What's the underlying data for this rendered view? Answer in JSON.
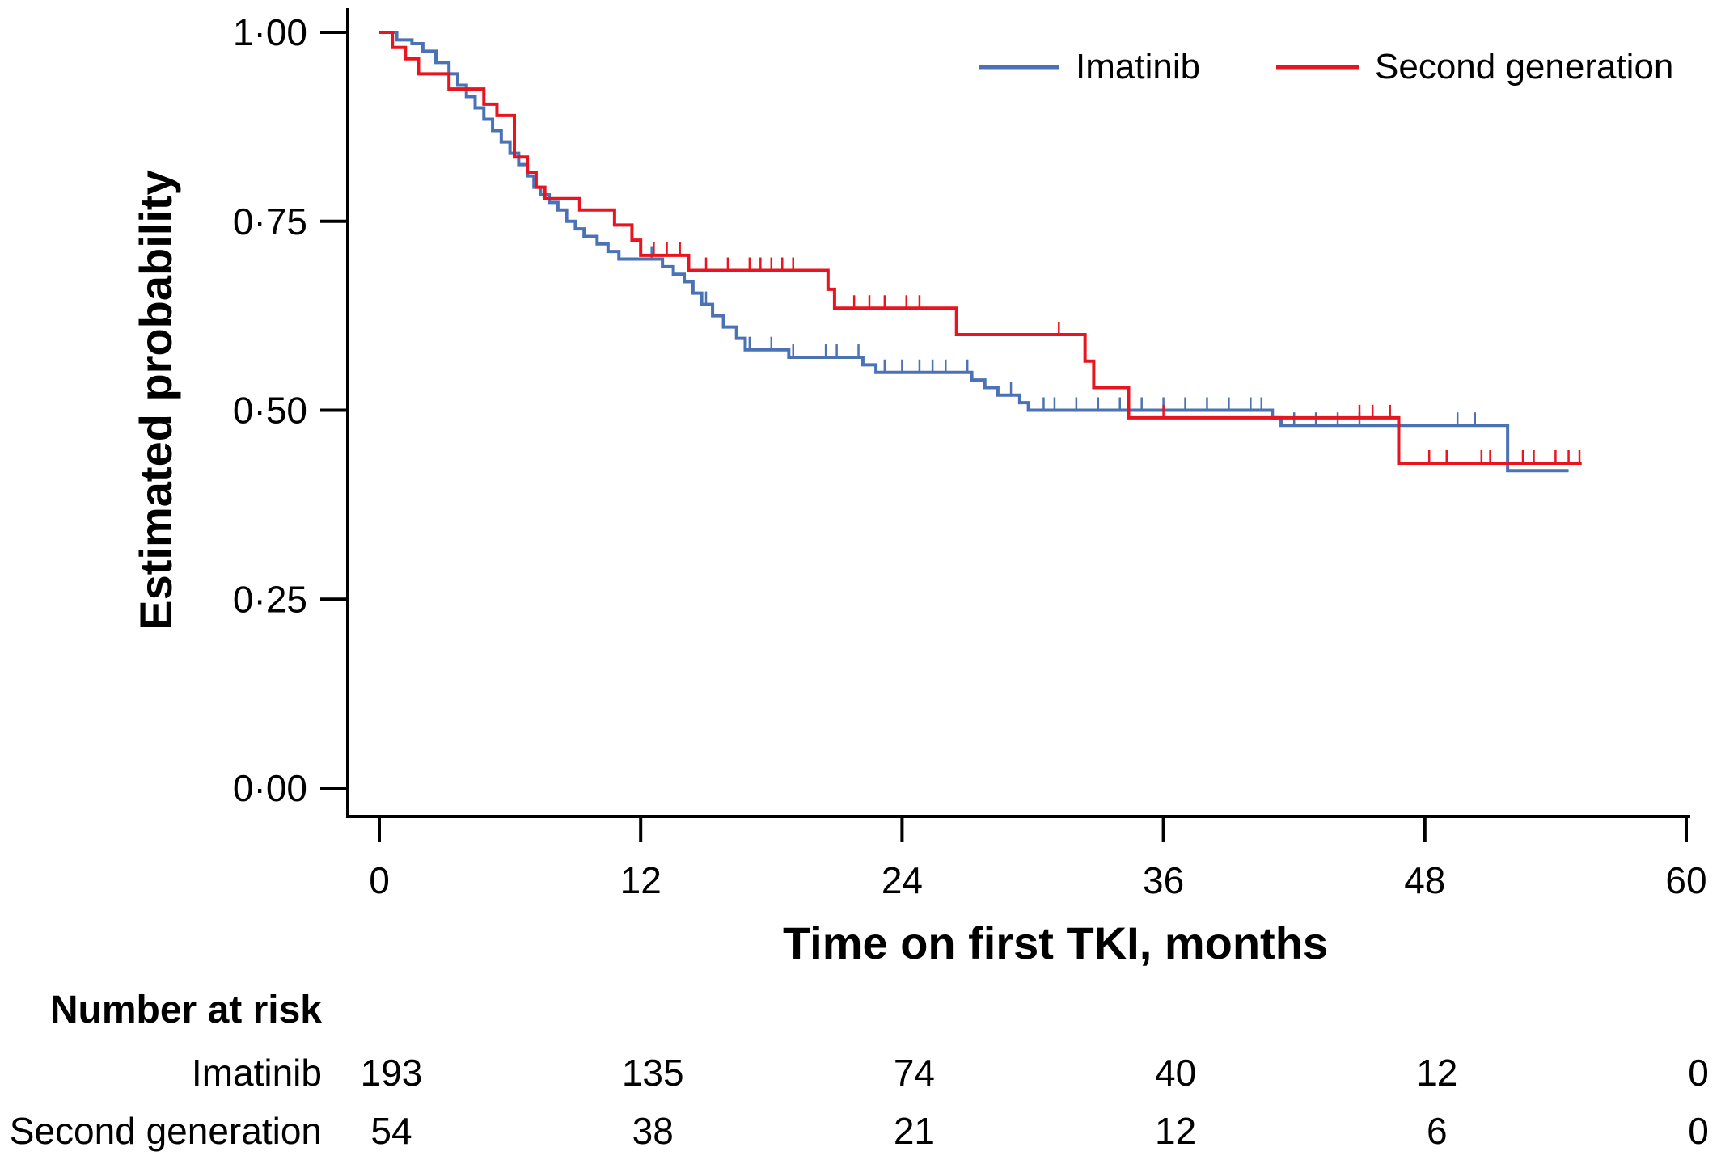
{
  "chart_data": {
    "type": "line",
    "subtype": "kaplan-meier",
    "title": "",
    "xlabel": "Time on first TKI, months",
    "ylabel": "Estimated probability",
    "xlim": [
      0,
      60
    ],
    "ylim": [
      0,
      1
    ],
    "x_ticks": [
      0,
      12,
      24,
      36,
      48,
      60
    ],
    "x_tick_labels": [
      "0",
      "12",
      "24",
      "36",
      "48",
      "60"
    ],
    "y_ticks": [
      0,
      0.25,
      0.5,
      0.75,
      1.0
    ],
    "y_tick_labels": [
      "0·00",
      "0·25",
      "0·50",
      "0·75",
      "1·00"
    ],
    "grid": false,
    "legend_position": "top-right",
    "series": [
      {
        "name": "Imatinib",
        "color": "#4a72b5",
        "steps": [
          [
            0,
            1.0
          ],
          [
            0.8,
            0.99
          ],
          [
            1.5,
            0.985
          ],
          [
            2.0,
            0.975
          ],
          [
            2.6,
            0.96
          ],
          [
            3.2,
            0.945
          ],
          [
            3.6,
            0.93
          ],
          [
            4.0,
            0.915
          ],
          [
            4.4,
            0.9
          ],
          [
            4.8,
            0.885
          ],
          [
            5.2,
            0.87
          ],
          [
            5.6,
            0.855
          ],
          [
            6.0,
            0.84
          ],
          [
            6.4,
            0.825
          ],
          [
            6.8,
            0.81
          ],
          [
            7.1,
            0.795
          ],
          [
            7.4,
            0.785
          ],
          [
            7.8,
            0.775
          ],
          [
            8.2,
            0.765
          ],
          [
            8.6,
            0.75
          ],
          [
            9.0,
            0.74
          ],
          [
            9.4,
            0.73
          ],
          [
            10.0,
            0.72
          ],
          [
            10.5,
            0.71
          ],
          [
            11.0,
            0.7
          ],
          [
            13.0,
            0.69
          ],
          [
            13.5,
            0.68
          ],
          [
            14.0,
            0.67
          ],
          [
            14.4,
            0.655
          ],
          [
            14.8,
            0.64
          ],
          [
            15.3,
            0.625
          ],
          [
            15.8,
            0.61
          ],
          [
            16.4,
            0.595
          ],
          [
            16.8,
            0.58
          ],
          [
            18.8,
            0.57
          ],
          [
            22.2,
            0.56
          ],
          [
            22.8,
            0.55
          ],
          [
            27.2,
            0.54
          ],
          [
            27.8,
            0.53
          ],
          [
            28.4,
            0.52
          ],
          [
            29.4,
            0.51
          ],
          [
            29.8,
            0.5
          ],
          [
            41.0,
            0.49
          ],
          [
            41.4,
            0.48
          ],
          [
            51.8,
            0.42
          ],
          [
            54.6,
            0.42
          ]
        ],
        "censor_times": [
          12.5,
          15,
          17,
          18,
          19,
          20.5,
          21,
          22,
          23.2,
          24,
          24.8,
          25.4,
          26,
          27,
          29,
          30.5,
          31,
          32,
          33,
          34,
          35,
          36,
          37,
          38,
          39,
          40,
          40.5,
          42,
          43,
          44,
          45,
          49.5,
          50.3
        ]
      },
      {
        "name": "Second generation",
        "color": "#e8141f",
        "steps": [
          [
            0,
            1.0
          ],
          [
            0.6,
            0.98
          ],
          [
            1.2,
            0.965
          ],
          [
            1.8,
            0.945
          ],
          [
            3.2,
            0.925
          ],
          [
            4.8,
            0.905
          ],
          [
            5.4,
            0.89
          ],
          [
            6.2,
            0.835
          ],
          [
            6.8,
            0.815
          ],
          [
            7.2,
            0.795
          ],
          [
            7.6,
            0.78
          ],
          [
            9.2,
            0.765
          ],
          [
            10.8,
            0.745
          ],
          [
            11.6,
            0.725
          ],
          [
            12.0,
            0.705
          ],
          [
            14.2,
            0.685
          ],
          [
            20.6,
            0.66
          ],
          [
            20.9,
            0.635
          ],
          [
            26.5,
            0.6
          ],
          [
            32.4,
            0.565
          ],
          [
            32.8,
            0.53
          ],
          [
            34.4,
            0.49
          ],
          [
            46.8,
            0.43
          ],
          [
            55.2,
            0.43
          ]
        ],
        "censor_times": [
          12.6,
          13.2,
          13.8,
          15,
          16,
          17,
          17.5,
          18,
          18.5,
          19,
          21.8,
          22.5,
          23.2,
          24.2,
          24.8,
          31.2,
          36,
          45,
          45.6,
          46.4,
          48.2,
          49,
          50.6,
          51,
          52.5,
          53,
          54,
          54.6,
          55.1
        ]
      }
    ],
    "number_at_risk": {
      "title": "Number at risk",
      "time_points": [
        0,
        12,
        24,
        36,
        48,
        60
      ],
      "rows": [
        {
          "label": "Imatinib",
          "values": [
            "193",
            "135",
            "74",
            "40",
            "12",
            "0"
          ]
        },
        {
          "label": "Second generation",
          "values": [
            "54",
            "38",
            "21",
            "12",
            "6",
            "0"
          ]
        }
      ]
    }
  }
}
